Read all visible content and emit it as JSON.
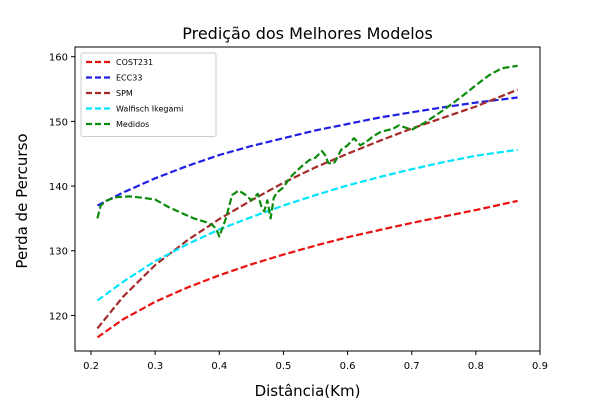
{
  "chart_data": {
    "type": "line",
    "title": "Predição dos Melhores Modelos",
    "xlabel": "Distância(Km)",
    "ylabel": "Perda de Percurso",
    "xlim": [
      0.175,
      0.9
    ],
    "ylim": [
      114.5,
      161.5
    ],
    "xticks": [
      "0.2",
      "0.3",
      "0.4",
      "0.5",
      "0.6",
      "0.7",
      "0.8",
      "0.9"
    ],
    "xtick_values": [
      0.2,
      0.3,
      0.4,
      0.5,
      0.6,
      0.7,
      0.8,
      0.9
    ],
    "yticks": [
      "120",
      "130",
      "140",
      "150",
      "160"
    ],
    "ytick_values": [
      120,
      130,
      140,
      150,
      160
    ],
    "grid": false,
    "legend_position": "top-left",
    "series": [
      {
        "name": "COST231",
        "color": "#e8110f",
        "style": "dashed",
        "x": [
          0.21,
          0.25,
          0.3,
          0.35,
          0.4,
          0.45,
          0.5,
          0.55,
          0.6,
          0.65,
          0.7,
          0.75,
          0.8,
          0.865
        ],
        "y": [
          116.6,
          119.4,
          122.1,
          124.3,
          126.2,
          127.9,
          129.4,
          130.8,
          132.1,
          133.2,
          134.3,
          135.3,
          136.3,
          137.7
        ]
      },
      {
        "name": "ECC33",
        "color": "#1f1fe6",
        "style": "dashed",
        "x": [
          0.21,
          0.25,
          0.3,
          0.35,
          0.4,
          0.45,
          0.5,
          0.55,
          0.6,
          0.65,
          0.7,
          0.75,
          0.8,
          0.865
        ],
        "y": [
          137.0,
          139.0,
          141.2,
          143.1,
          144.8,
          146.2,
          147.4,
          148.6,
          149.6,
          150.6,
          151.4,
          152.2,
          152.9,
          153.7
        ]
      },
      {
        "name": "SPM",
        "color": "#a52a2a",
        "style": "dashed",
        "x": [
          0.21,
          0.25,
          0.3,
          0.35,
          0.4,
          0.45,
          0.5,
          0.55,
          0.6,
          0.65,
          0.7,
          0.75,
          0.8,
          0.865
        ],
        "y": [
          118.0,
          122.9,
          127.8,
          131.6,
          134.9,
          137.8,
          140.5,
          142.9,
          145.0,
          147.0,
          148.9,
          150.6,
          152.3,
          154.9
        ]
      },
      {
        "name": "Walfisch Ikegami",
        "color": "#00e5ff",
        "style": "dashed",
        "x": [
          0.21,
          0.25,
          0.3,
          0.35,
          0.4,
          0.45,
          0.5,
          0.55,
          0.6,
          0.65,
          0.7,
          0.75,
          0.8,
          0.865
        ],
        "y": [
          122.3,
          125.2,
          128.4,
          131.0,
          133.3,
          135.2,
          137.0,
          138.6,
          140.1,
          141.4,
          142.6,
          143.7,
          144.7,
          145.6
        ]
      },
      {
        "name": "Medidos",
        "color": "#0c8a0c",
        "style": "dashed",
        "x": [
          0.21,
          0.215,
          0.225,
          0.24,
          0.26,
          0.28,
          0.3,
          0.32,
          0.34,
          0.36,
          0.38,
          0.39,
          0.395,
          0.4,
          0.41,
          0.42,
          0.43,
          0.44,
          0.45,
          0.46,
          0.465,
          0.47,
          0.475,
          0.48,
          0.485,
          0.49,
          0.5,
          0.51,
          0.52,
          0.53,
          0.54,
          0.55,
          0.56,
          0.565,
          0.57,
          0.575,
          0.58,
          0.59,
          0.6,
          0.61,
          0.62,
          0.63,
          0.64,
          0.65,
          0.66,
          0.67,
          0.68,
          0.7,
          0.72,
          0.74,
          0.76,
          0.78,
          0.8,
          0.82,
          0.84,
          0.865
        ],
        "y": [
          135.0,
          137.0,
          137.8,
          138.3,
          138.4,
          138.2,
          137.9,
          136.8,
          135.9,
          135.0,
          134.4,
          133.9,
          133.4,
          132.2,
          134.9,
          138.6,
          139.3,
          138.7,
          137.8,
          138.8,
          137.0,
          136.1,
          137.8,
          135.0,
          138.2,
          139.0,
          139.8,
          141.3,
          142.3,
          143.2,
          144.0,
          144.4,
          145.4,
          144.8,
          143.6,
          143.4,
          143.7,
          145.6,
          146.3,
          147.4,
          146.3,
          146.9,
          147.7,
          148.3,
          148.6,
          148.8,
          149.4,
          148.7,
          149.8,
          151.1,
          152.5,
          154.0,
          155.6,
          157.1,
          158.2,
          158.6
        ]
      }
    ]
  }
}
